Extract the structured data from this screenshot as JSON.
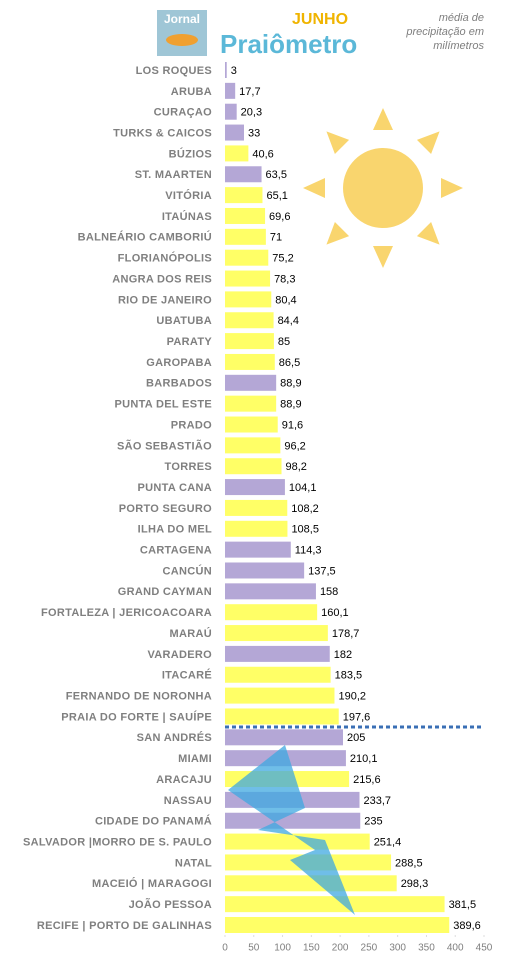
{
  "chart_data": {
    "type": "bar",
    "orientation": "horizontal",
    "title": "Praiômetro",
    "month": "JUNHO",
    "logo": "Jornal",
    "subtitle_lines": [
      "média de",
      "precipitação em",
      "milímetros"
    ],
    "categories": [
      "LOS ROQUES",
      "ARUBA",
      "CURAÇAO",
      "TURKS & CAICOS",
      "BÚZIOS",
      "ST. MAARTEN",
      "VITÓRIA",
      "ITAÚNAS",
      "BALNEÁRIO CAMBORIÚ",
      "FLORIANÓPOLIS",
      "ANGRA DOS REIS",
      "RIO DE JANEIRO",
      "UBATUBA",
      "PARATY",
      "GAROPABA",
      "BARBADOS",
      "PUNTA DEL ESTE",
      "PRADO",
      "SÃO SEBASTIÃO",
      "TORRES",
      "PUNTA CANA",
      "PORTO SEGURO",
      "ILHA DO MEL",
      "CARTAGENA",
      "CANCÚN",
      "GRAND CAYMAN",
      "FORTALEZA | JERICOACOARA",
      "MARAÚ",
      "VARADERO",
      "ITACARÉ",
      "FERNANDO DE NORONHA",
      "PRAIA DO FORTE | SAUÍPE",
      "SAN ANDRÉS",
      "MIAMI",
      "ARACAJU",
      "NASSAU",
      "CIDADE DO PANAMÁ",
      "SALVADOR |MORRO DE S. PAULO",
      "NATAL",
      "MACEIÓ | MARAGOGI",
      "JOÃO PESSOA",
      "RECIFE | PORTO DE GALINHAS"
    ],
    "values": [
      3,
      17.7,
      20.3,
      33,
      40.6,
      63.5,
      65.1,
      69.6,
      71,
      75.2,
      78.3,
      80.4,
      84.4,
      85,
      86.5,
      88.9,
      88.9,
      91.6,
      96.2,
      98.2,
      104.1,
      108.2,
      108.5,
      114.3,
      137.5,
      158,
      160.1,
      178.7,
      182,
      183.5,
      190.2,
      197.6,
      205,
      210.1,
      215.6,
      233.7,
      235,
      251.4,
      288.5,
      298.3,
      381.5,
      389.6
    ],
    "value_labels": [
      "3",
      "17,7",
      "20,3",
      "33",
      "40,6",
      "63,5",
      "65,1",
      "69,6",
      "71",
      "75,2",
      "78,3",
      "80,4",
      "84,4",
      "85",
      "86,5",
      "88,9",
      "88,9",
      "91,6",
      "96,2",
      "98,2",
      "104,1",
      "108,2",
      "108,5",
      "114,3",
      "137,5",
      "158",
      "160,1",
      "178,7",
      "182",
      "183,5",
      "190,2",
      "197,6",
      "205",
      "210,1",
      "215,6",
      "233,7",
      "235",
      "251,4",
      "288,5",
      "298,3",
      "381,5",
      "389,6"
    ],
    "colors": [
      "#b4a7d6",
      "#b4a7d6",
      "#b4a7d6",
      "#b4a7d6",
      "#ffff66",
      "#b4a7d6",
      "#ffff66",
      "#ffff66",
      "#ffff66",
      "#ffff66",
      "#ffff66",
      "#ffff66",
      "#ffff66",
      "#ffff66",
      "#ffff66",
      "#b4a7d6",
      "#ffff66",
      "#ffff66",
      "#ffff66",
      "#ffff66",
      "#b4a7d6",
      "#ffff66",
      "#ffff66",
      "#b4a7d6",
      "#b4a7d6",
      "#b4a7d6",
      "#ffff66",
      "#ffff66",
      "#b4a7d6",
      "#ffff66",
      "#ffff66",
      "#ffff66",
      "#b4a7d6",
      "#b4a7d6",
      "#ffff66",
      "#b4a7d6",
      "#b4a7d6",
      "#ffff66",
      "#ffff66",
      "#ffff66",
      "#ffff66",
      "#ffff66"
    ],
    "xlim": [
      0,
      450
    ],
    "xticks": [
      0,
      50,
      100,
      150,
      200,
      250,
      300,
      350,
      400,
      450
    ],
    "grid": false
  }
}
